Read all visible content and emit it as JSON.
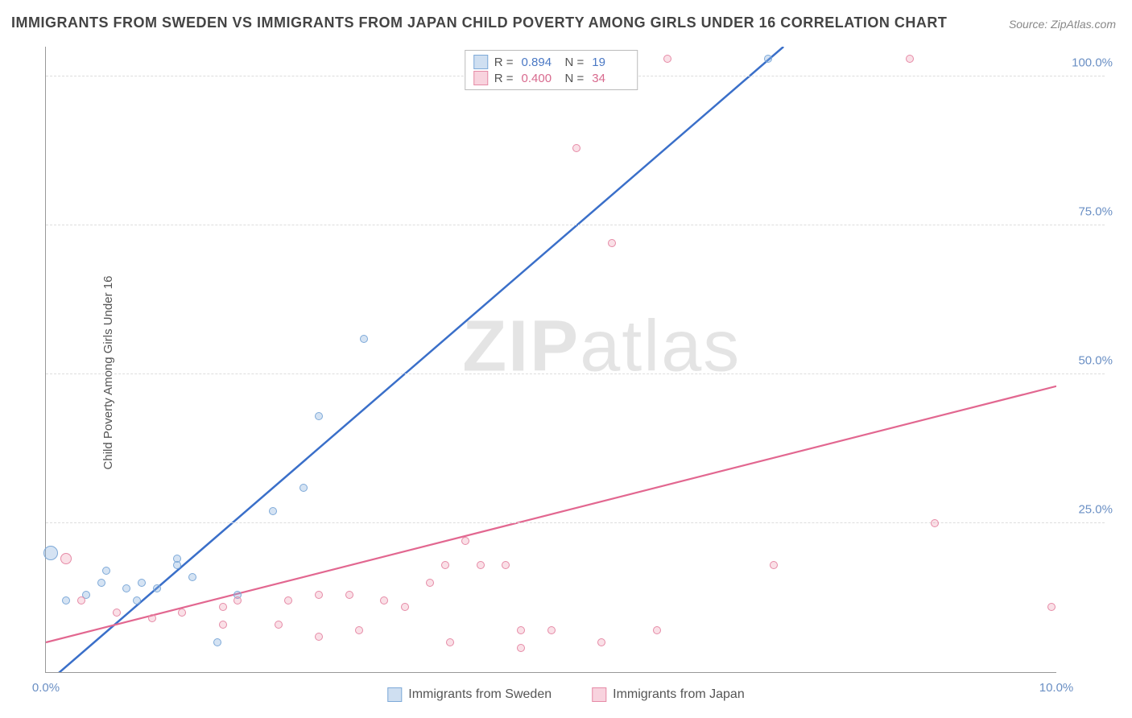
{
  "title": "IMMIGRANTS FROM SWEDEN VS IMMIGRANTS FROM JAPAN CHILD POVERTY AMONG GIRLS UNDER 16 CORRELATION CHART",
  "source": "Source: ZipAtlas.com",
  "ylabel": "Child Poverty Among Girls Under 16",
  "watermark_a": "ZIP",
  "watermark_b": "atlas",
  "chart": {
    "type": "scatter",
    "xlim": [
      0,
      10.0
    ],
    "ylim": [
      0,
      105
    ],
    "xticks": [
      {
        "v": 0.0,
        "label": "0.0%"
      },
      {
        "v": 10.0,
        "label": "10.0%"
      }
    ],
    "yticks": [
      {
        "v": 25.0,
        "label": "25.0%"
      },
      {
        "v": 50.0,
        "label": "50.0%"
      },
      {
        "v": 75.0,
        "label": "75.0%"
      },
      {
        "v": 100.0,
        "label": "100.0%"
      }
    ],
    "grid_color": "#dddddd",
    "background_color": "#ffffff",
    "series": [
      {
        "name": "Immigrants from Sweden",
        "color_fill": "rgba(135,175,220,0.35)",
        "color_stroke": "#7da9d8",
        "line_color": "#3a6fc9",
        "line_width": 2.5,
        "r_label": "R =",
        "r_value": "0.894",
        "n_label": "N =",
        "n_value": "19",
        "trend": {
          "x1": 0.0,
          "y1": -2,
          "x2": 7.3,
          "y2": 105
        },
        "points": [
          {
            "x": 0.05,
            "y": 20,
            "r": 18
          },
          {
            "x": 0.2,
            "y": 12,
            "r": 10
          },
          {
            "x": 0.4,
            "y": 13,
            "r": 10
          },
          {
            "x": 0.55,
            "y": 15,
            "r": 10
          },
          {
            "x": 0.6,
            "y": 17,
            "r": 10
          },
          {
            "x": 0.8,
            "y": 14,
            "r": 10
          },
          {
            "x": 0.95,
            "y": 15,
            "r": 10
          },
          {
            "x": 0.9,
            "y": 12,
            "r": 10
          },
          {
            "x": 1.1,
            "y": 14,
            "r": 10
          },
          {
            "x": 1.3,
            "y": 18,
            "r": 10
          },
          {
            "x": 1.3,
            "y": 19,
            "r": 10
          },
          {
            "x": 1.45,
            "y": 16,
            "r": 10
          },
          {
            "x": 1.7,
            "y": 5,
            "r": 10
          },
          {
            "x": 1.9,
            "y": 13,
            "r": 10
          },
          {
            "x": 2.25,
            "y": 27,
            "r": 10
          },
          {
            "x": 2.55,
            "y": 31,
            "r": 10
          },
          {
            "x": 2.7,
            "y": 43,
            "r": 10
          },
          {
            "x": 3.15,
            "y": 56,
            "r": 10
          },
          {
            "x": 7.15,
            "y": 103,
            "r": 10
          }
        ]
      },
      {
        "name": "Immigrants from Japan",
        "color_fill": "rgba(235,130,160,0.25)",
        "color_stroke": "#e68aa6",
        "line_color": "#e26790",
        "line_width": 2.2,
        "r_label": "R =",
        "r_value": "0.400",
        "n_label": "N =",
        "n_value": "34",
        "trend": {
          "x1": 0.0,
          "y1": 5,
          "x2": 10.0,
          "y2": 48
        },
        "points": [
          {
            "x": 0.2,
            "y": 19,
            "r": 14
          },
          {
            "x": 0.35,
            "y": 12,
            "r": 10
          },
          {
            "x": 0.7,
            "y": 10,
            "r": 10
          },
          {
            "x": 1.05,
            "y": 9,
            "r": 10
          },
          {
            "x": 1.35,
            "y": 10,
            "r": 10
          },
          {
            "x": 1.75,
            "y": 11,
            "r": 10
          },
          {
            "x": 1.75,
            "y": 8,
            "r": 10
          },
          {
            "x": 1.9,
            "y": 12,
            "r": 10
          },
          {
            "x": 2.3,
            "y": 8,
            "r": 10
          },
          {
            "x": 2.4,
            "y": 12,
            "r": 10
          },
          {
            "x": 2.7,
            "y": 6,
            "r": 10
          },
          {
            "x": 2.7,
            "y": 13,
            "r": 10
          },
          {
            "x": 3.0,
            "y": 13,
            "r": 10
          },
          {
            "x": 3.1,
            "y": 7,
            "r": 10
          },
          {
            "x": 3.35,
            "y": 12,
            "r": 10
          },
          {
            "x": 3.55,
            "y": 11,
            "r": 10
          },
          {
            "x": 3.8,
            "y": 15,
            "r": 10
          },
          {
            "x": 3.95,
            "y": 18,
            "r": 10
          },
          {
            "x": 4.0,
            "y": 5,
            "r": 10
          },
          {
            "x": 4.15,
            "y": 22,
            "r": 10
          },
          {
            "x": 4.3,
            "y": 18,
            "r": 10
          },
          {
            "x": 4.55,
            "y": 18,
            "r": 10
          },
          {
            "x": 4.7,
            "y": 4,
            "r": 10
          },
          {
            "x": 4.7,
            "y": 7,
            "r": 10
          },
          {
            "x": 5.0,
            "y": 7,
            "r": 10
          },
          {
            "x": 5.25,
            "y": 88,
            "r": 10
          },
          {
            "x": 5.5,
            "y": 5,
            "r": 10
          },
          {
            "x": 5.6,
            "y": 72,
            "r": 10
          },
          {
            "x": 6.05,
            "y": 7,
            "r": 10
          },
          {
            "x": 6.15,
            "y": 103,
            "r": 10
          },
          {
            "x": 7.2,
            "y": 18,
            "r": 10
          },
          {
            "x": 8.55,
            "y": 103,
            "r": 10
          },
          {
            "x": 8.8,
            "y": 25,
            "r": 10
          },
          {
            "x": 9.95,
            "y": 11,
            "r": 10
          }
        ]
      }
    ],
    "legend_bottom": [
      {
        "label": "Immigrants from Sweden",
        "cls": "blue"
      },
      {
        "label": "Immigrants from Japan",
        "cls": "pink"
      }
    ]
  }
}
